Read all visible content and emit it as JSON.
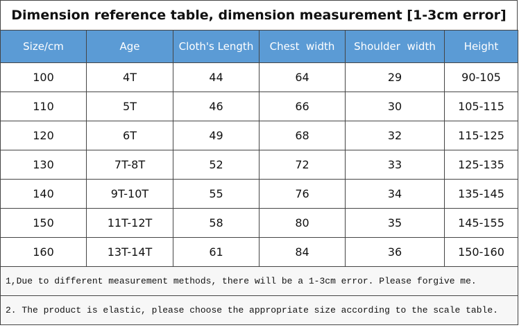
{
  "title": "Dimension reference table, dimension measurement [1-3cm error]",
  "table": {
    "header": [
      "Size/cm",
      "Age",
      "Cloth's Length",
      "Chest  width",
      "Shoulder  width",
      "Height"
    ],
    "rows": [
      [
        "100",
        "4T",
        "44",
        "64",
        "29",
        "90-105"
      ],
      [
        "110",
        "5T",
        "46",
        "66",
        "30",
        "105-115"
      ],
      [
        "120",
        "6T",
        "49",
        "68",
        "32",
        "115-125"
      ],
      [
        "130",
        "7T-8T",
        "52",
        "72",
        "33",
        "125-135"
      ],
      [
        "140",
        "9T-10T",
        "55",
        "76",
        "34",
        "135-145"
      ],
      [
        "150",
        "11T-12T",
        "58",
        "80",
        "35",
        "145-155"
      ],
      [
        "160",
        "13T-14T",
        "61",
        "84",
        "36",
        "150-160"
      ]
    ]
  },
  "notes": [
    "1,Due to different measurement methods, there will be a 1-3cm error. Please forgive me.",
    "2. The product is elastic, please choose the appropriate size according to the scale table."
  ]
}
